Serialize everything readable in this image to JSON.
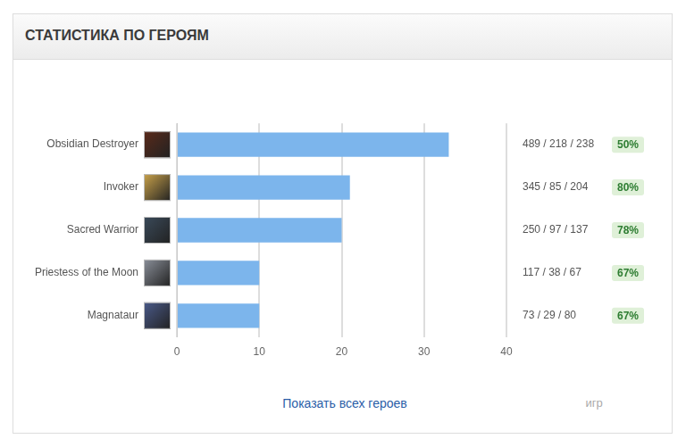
{
  "chart_data": {
    "type": "bar",
    "title": "СТАТИСТИКА ПО ГЕРОЯМ",
    "orientation": "horizontal",
    "categories": [
      "Obsidian Destroyer",
      "Invoker",
      "Sacred Warrior",
      "Priestess of the Moon",
      "Magnataur"
    ],
    "values": [
      33,
      21,
      20,
      10,
      10
    ],
    "color": "#7cb5ec",
    "xlim": [
      0,
      40
    ],
    "xticks": [
      0,
      10,
      20,
      30,
      40
    ],
    "grid": true,
    "stats": [
      "489 / 218 / 238",
      "345 / 85 / 204",
      "250 / 97 / 137",
      "117 / 38 / 67",
      "73 / 29 / 80"
    ],
    "win_rates": [
      "50%",
      "80%",
      "78%",
      "67%",
      "67%"
    ],
    "link_text": "Показать всех героев",
    "stats_label": "игр"
  }
}
